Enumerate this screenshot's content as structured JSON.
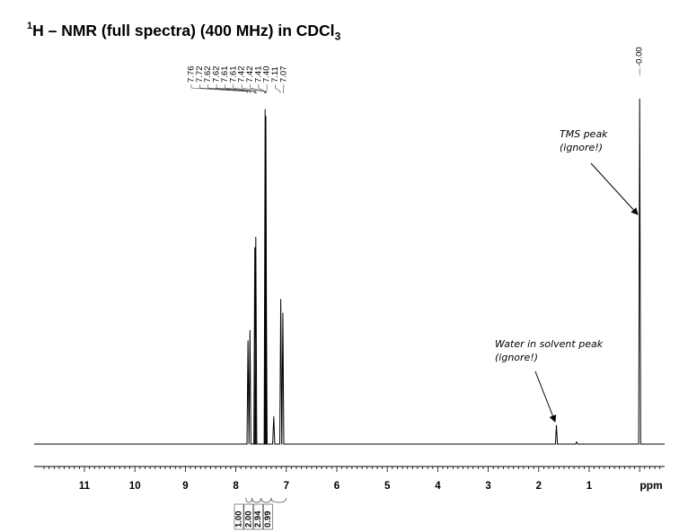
{
  "title": {
    "nucleus_mass": "1",
    "main": "H – NMR (full spectra) (400 MHz) in CDCl",
    "sub": "3"
  },
  "chart_data": {
    "type": "line",
    "title": "1H – NMR (full spectra) (400 MHz) in CDCl3",
    "xlabel": "ppm",
    "x_axis": {
      "ticks": [
        "11",
        "10",
        "9",
        "8",
        "7",
        "6",
        "5",
        "4",
        "3",
        "2",
        "1"
      ],
      "unit": "ppm",
      "reversed": true,
      "range": [
        11.9,
        -0.45
      ]
    },
    "peak_labels": [
      "7.76",
      "7.72",
      "7.62",
      "7.62",
      "7.61",
      "7.61",
      "7.42",
      "7.42",
      "7.41",
      "7.40",
      "7.11",
      "7.07"
    ],
    "tms_label": "-0.00",
    "series": [
      {
        "peaks": [
          {
            "x": 7.76,
            "h": 0.3
          },
          {
            "x": 7.72,
            "h": 0.33
          },
          {
            "x": 7.625,
            "h": 0.57
          },
          {
            "x": 7.605,
            "h": 0.6
          },
          {
            "x": 7.42,
            "h": 0.97
          },
          {
            "x": 7.405,
            "h": 0.95
          },
          {
            "x": 7.4,
            "h": 0.58
          },
          {
            "x": 7.25,
            "h": 0.08
          },
          {
            "x": 7.11,
            "h": 0.42
          },
          {
            "x": 7.07,
            "h": 0.38
          },
          {
            "x": 1.65,
            "h": 0.055
          },
          {
            "x": 1.25,
            "h": 0.006
          },
          {
            "x": 0.0,
            "h": 1.0
          }
        ]
      }
    ],
    "integrals": [
      {
        "value": "1.00",
        "range": [
          7.8,
          7.68
        ]
      },
      {
        "value": "2.00",
        "range": [
          7.68,
          7.5
        ]
      },
      {
        "value": "2.94",
        "range": [
          7.5,
          7.3
        ]
      },
      {
        "value": "0.99",
        "range": [
          7.3,
          7.0
        ]
      }
    ],
    "annotations": [
      {
        "lines": [
          "TMS peak",
          "(ignore!)"
        ],
        "target_x": 0.0
      },
      {
        "lines": [
          "Water in solvent peak",
          "(ignore!)"
        ],
        "target_x": 1.65
      }
    ],
    "grid": false
  }
}
